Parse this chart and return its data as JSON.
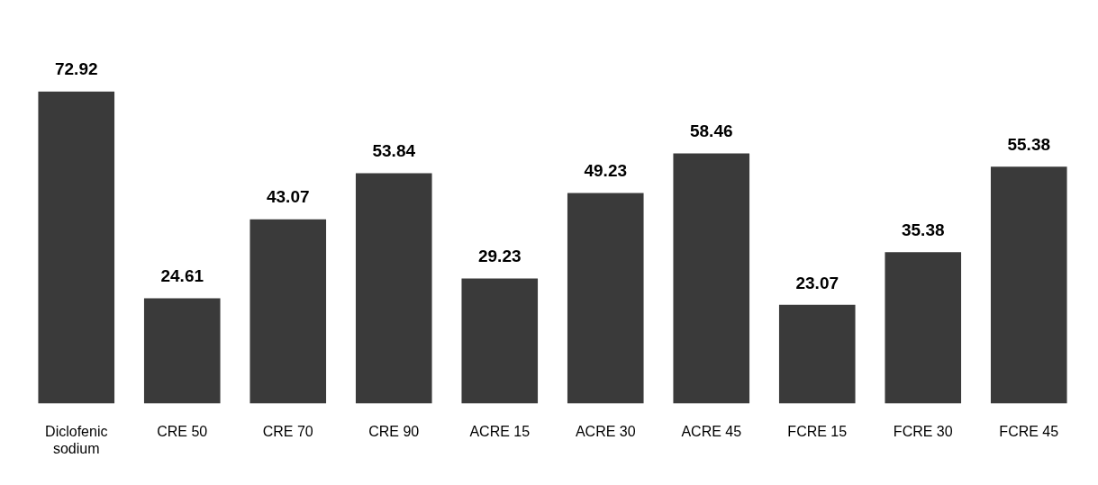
{
  "chart_data": {
    "type": "bar",
    "relative": false,
    "categories": [
      "Diclofenic sodium",
      "CRE 50",
      "CRE 70",
      "CRE 90",
      "ACRE 15",
      "ACRE 30",
      "ACRE 45",
      "FCRE 15",
      "FCRE 30",
      "FCRE 45"
    ],
    "values": [
      72.92,
      24.61,
      43.07,
      53.84,
      29.23,
      49.23,
      58.46,
      23.07,
      35.38,
      55.38
    ],
    "color": "#3a3a3a",
    "data_labels": true,
    "grid": false,
    "legend": false
  }
}
